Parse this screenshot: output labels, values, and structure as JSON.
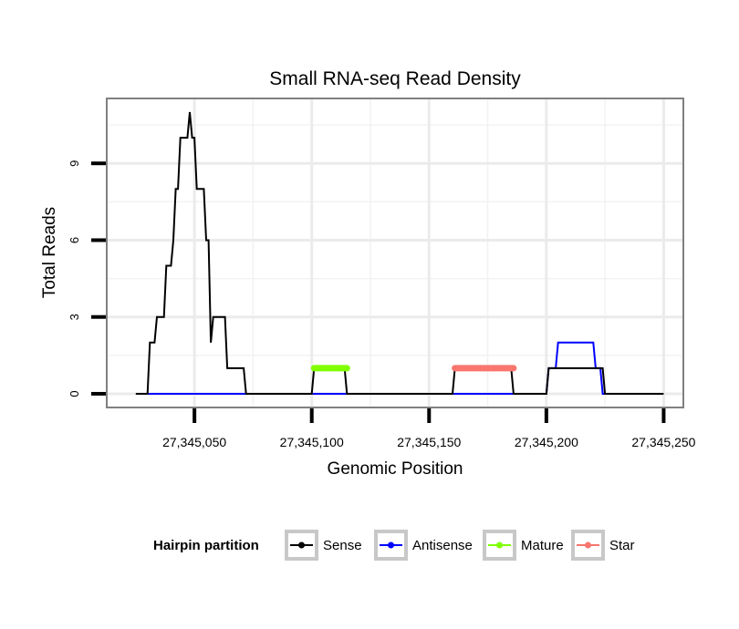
{
  "chart_data": {
    "type": "line",
    "title": "Small RNA-seq Read Density",
    "xlabel": "Genomic Position",
    "ylabel": "Total Reads",
    "xlim": [
      27345013,
      27345258
    ],
    "ylim": [
      -0.5,
      11.5
    ],
    "x_ticks": [
      {
        "value": 27345050,
        "label": "27,345,050"
      },
      {
        "value": 27345100,
        "label": "27,345,100"
      },
      {
        "value": 27345150,
        "label": "27,345,150"
      },
      {
        "value": 27345200,
        "label": "27,345,200"
      },
      {
        "value": 27345250,
        "label": "27,345,250"
      }
    ],
    "y_ticks": [
      {
        "value": 0,
        "label": "0"
      },
      {
        "value": 3,
        "label": "3"
      },
      {
        "value": 6,
        "label": "6"
      },
      {
        "value": 9,
        "label": "9"
      }
    ],
    "grid": true,
    "legend": {
      "title": "Hairpin partition",
      "position": "bottom",
      "entries": [
        "Sense",
        "Antisense",
        "Mature",
        "Star"
      ]
    },
    "series": [
      {
        "name": "Sense",
        "color": "#000000",
        "points": [
          [
            27345025,
            0
          ],
          [
            27345030,
            0
          ],
          [
            27345031,
            2
          ],
          [
            27345033,
            2
          ],
          [
            27345034,
            3
          ],
          [
            27345037,
            3
          ],
          [
            27345038,
            5
          ],
          [
            27345040,
            5
          ],
          [
            27345041,
            6
          ],
          [
            27345042,
            8
          ],
          [
            27345043,
            8
          ],
          [
            27345044,
            10
          ],
          [
            27345046,
            10
          ],
          [
            27345047,
            10
          ],
          [
            27345048,
            11
          ],
          [
            27345049,
            10
          ],
          [
            27345050,
            10
          ],
          [
            27345051,
            8
          ],
          [
            27345054,
            8
          ],
          [
            27345055,
            6
          ],
          [
            27345056,
            6
          ],
          [
            27345057,
            2
          ],
          [
            27345058,
            3
          ],
          [
            27345063,
            3
          ],
          [
            27345064,
            1
          ],
          [
            27345071,
            1
          ],
          [
            27345072,
            0
          ],
          [
            27345100,
            0
          ],
          [
            27345101,
            1
          ],
          [
            27345114,
            1
          ],
          [
            27345115,
            0
          ],
          [
            27345160,
            0
          ],
          [
            27345161,
            1
          ],
          [
            27345185,
            1
          ],
          [
            27345186,
            0
          ],
          [
            27345200,
            0
          ],
          [
            27345201,
            1
          ],
          [
            27345207,
            1
          ],
          [
            27345224,
            1
          ],
          [
            27345225,
            0
          ],
          [
            27345250,
            0
          ]
        ]
      },
      {
        "name": "Antisense",
        "color": "#0000ff",
        "points": [
          [
            27345025,
            0
          ],
          [
            27345200,
            0
          ],
          [
            27345201,
            1
          ],
          [
            27345204,
            1
          ],
          [
            27345205,
            2
          ],
          [
            27345210,
            2
          ],
          [
            27345220,
            2
          ],
          [
            27345221,
            1
          ],
          [
            27345223,
            1
          ],
          [
            27345224,
            0
          ],
          [
            27345245,
            0
          ]
        ]
      },
      {
        "name": "Mature",
        "color": "#7fff00",
        "points": [
          [
            27345101,
            1
          ],
          [
            27345115,
            1
          ]
        ]
      },
      {
        "name": "Star",
        "color": "#f8766d",
        "points": [
          [
            27345161,
            1
          ],
          [
            27345186,
            1
          ]
        ]
      }
    ]
  }
}
